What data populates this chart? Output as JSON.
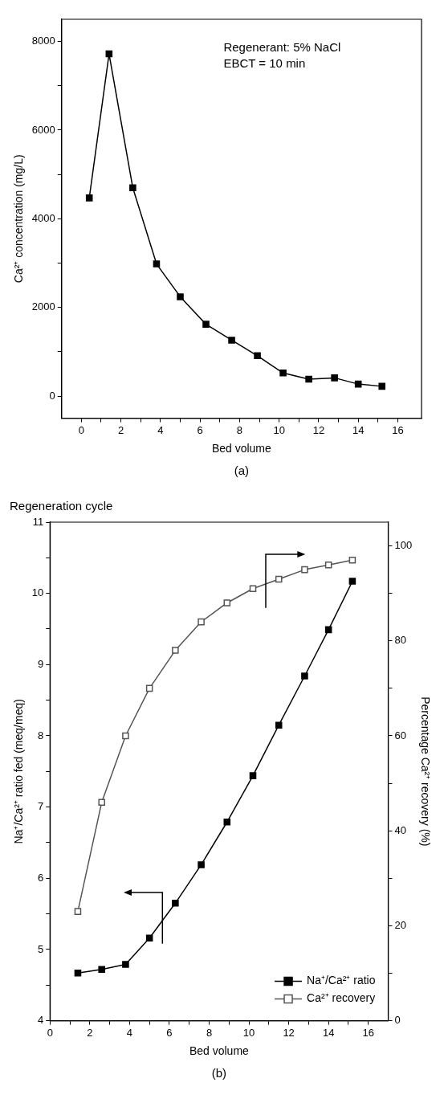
{
  "chart_data": [
    {
      "type": "line",
      "xlabel": "Bed volume",
      "ylabel": "Ca²⁺ concentration (mg/L)",
      "annotations": [
        "Regenerant: 5% NaCl",
        "EBCT = 10 min",
        "(a)"
      ],
      "x": [
        0.4,
        1.4,
        2.6,
        3.8,
        5.0,
        6.3,
        7.6,
        8.9,
        10.2,
        11.5,
        12.8,
        14.0,
        15.2
      ],
      "series": [
        {
          "color": "#000000",
          "values": [
            4470,
            7720,
            4700,
            2980,
            2240,
            1620,
            1260,
            910,
            520,
            380,
            410,
            270,
            220
          ]
        }
      ],
      "xlim": [
        -1,
        17.2
      ],
      "xticks": [
        0,
        {
          "value": 1,
          "label": null
        },
        2,
        {
          "value": 3,
          "label": null
        },
        4,
        {
          "value": 5,
          "label": null
        },
        6,
        {
          "value": 7,
          "label": null
        },
        8,
        {
          "value": 9,
          "label": null
        },
        10,
        {
          "value": 11,
          "label": null
        },
        12,
        {
          "value": 13,
          "label": null
        },
        14,
        {
          "value": 15,
          "label": null
        },
        16
      ],
      "ylim": [
        -500,
        8500
      ],
      "yticks": [
        0,
        {
          "value": 1000,
          "label": null
        },
        2000,
        {
          "value": 3000,
          "label": null
        },
        4000,
        {
          "value": 5000,
          "label": null
        },
        6000,
        {
          "value": 7000,
          "label": null
        },
        8000
      ],
      "marker": "square",
      "line_style": "solid",
      "grid": false,
      "legend": false
    },
    {
      "type": "line",
      "title": "Regeneration cycle",
      "xlabel": "Bed volume",
      "ylabel": "Na⁺/Ca²⁺ ratio fed (meq/meq)",
      "y2label": "Percentage Ca²⁺ recovery (%)",
      "annotations": [
        "(b)"
      ],
      "x": [
        1.4,
        2.6,
        3.8,
        5.0,
        6.3,
        7.6,
        8.9,
        10.2,
        11.5,
        12.8,
        14.0,
        15.2
      ],
      "series": [
        {
          "name": "Na⁺/Ca²⁺ ratio",
          "color": "#000000",
          "values": [
            4.67,
            4.72,
            4.79,
            5.16,
            5.65,
            6.19,
            6.79,
            7.44,
            8.15,
            8.84,
            9.49,
            10.17
          ]
        },
        {
          "name": "Ca²⁺ recovery",
          "color": "#555555",
          "axis": "y2",
          "values": [
            23,
            46,
            60,
            70,
            78,
            84,
            88,
            91,
            93,
            95,
            96,
            97
          ]
        }
      ],
      "xlim": [
        0,
        17
      ],
      "xticks": [
        0,
        {
          "value": 1,
          "label": null
        },
        2,
        {
          "value": 3,
          "label": null
        },
        4,
        {
          "value": 5,
          "label": null
        },
        6,
        {
          "value": 7,
          "label": null
        },
        8,
        {
          "value": 9,
          "label": null
        },
        10,
        {
          "value": 11,
          "label": null
        },
        12,
        {
          "value": 13,
          "label": null
        },
        14,
        {
          "value": 15,
          "label": null
        },
        16
      ],
      "ylim": [
        4,
        11
      ],
      "yticks": [
        4,
        {
          "value": 4.5,
          "label": null
        },
        5,
        {
          "value": 5.5,
          "label": null
        },
        6,
        {
          "value": 6.5,
          "label": null
        },
        7,
        {
          "value": 7.5,
          "label": null
        },
        8,
        {
          "value": 8.5,
          "label": null
        },
        9,
        {
          "value": 9.5,
          "label": null
        },
        10,
        {
          "value": 10.5,
          "label": null
        },
        11
      ],
      "y2lim": [
        0,
        105
      ],
      "y2ticks": [
        0,
        {
          "value": 10,
          "label": null
        },
        20,
        {
          "value": 30,
          "label": null
        },
        40,
        {
          "value": 50,
          "label": null
        },
        60,
        {
          "value": 70,
          "label": null
        },
        80,
        {
          "value": 90,
          "label": null
        },
        100
      ],
      "marker": "square",
      "line_style": "solid",
      "grid": false,
      "legend": "bottom right"
    }
  ]
}
